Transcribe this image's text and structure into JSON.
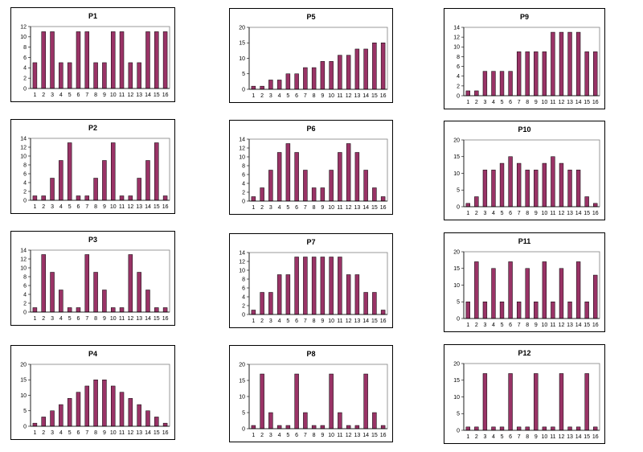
{
  "colors": {
    "bar": "#993366",
    "axis": "#000000",
    "plot_border": "#808080"
  },
  "chart_data": [
    {
      "type": "bar",
      "title": "P1",
      "xlabel": "",
      "ylabel": "",
      "categories": [
        "1",
        "2",
        "3",
        "4",
        "5",
        "6",
        "7",
        "8",
        "9",
        "10",
        "11",
        "12",
        "13",
        "14",
        "15",
        "16"
      ],
      "values": [
        5,
        11,
        11,
        5,
        5,
        11,
        11,
        5,
        5,
        11,
        11,
        5,
        5,
        11,
        11,
        11
      ],
      "ylim": [
        0,
        12
      ],
      "yticks": [
        0,
        2,
        4,
        6,
        8,
        10,
        12
      ]
    },
    {
      "type": "bar",
      "title": "P2",
      "xlabel": "",
      "ylabel": "",
      "categories": [
        "1",
        "2",
        "3",
        "4",
        "5",
        "6",
        "7",
        "8",
        "9",
        "10",
        "11",
        "12",
        "13",
        "14",
        "15",
        "16"
      ],
      "values": [
        1,
        1,
        5,
        9,
        13,
        1,
        1,
        5,
        9,
        13,
        1,
        1,
        5,
        9,
        13,
        1
      ],
      "ylim": [
        0,
        14
      ],
      "yticks": [
        0,
        2,
        4,
        6,
        8,
        10,
        12,
        14
      ]
    },
    {
      "type": "bar",
      "title": "P3",
      "xlabel": "",
      "ylabel": "",
      "categories": [
        "1",
        "2",
        "3",
        "4",
        "5",
        "6",
        "7",
        "8",
        "9",
        "10",
        "11",
        "12",
        "13",
        "14",
        "15",
        "16"
      ],
      "values": [
        1,
        13,
        9,
        5,
        1,
        1,
        13,
        9,
        5,
        1,
        1,
        13,
        9,
        5,
        1,
        1
      ],
      "ylim": [
        0,
        14
      ],
      "yticks": [
        0,
        2,
        4,
        6,
        8,
        10,
        12,
        14
      ]
    },
    {
      "type": "bar",
      "title": "P4",
      "xlabel": "",
      "ylabel": "",
      "categories": [
        "1",
        "2",
        "3",
        "4",
        "5",
        "6",
        "7",
        "8",
        "9",
        "10",
        "11",
        "12",
        "13",
        "14",
        "15",
        "16"
      ],
      "values": [
        1,
        3,
        5,
        7,
        9,
        11,
        13,
        15,
        15,
        13,
        11,
        9,
        7,
        5,
        3,
        1
      ],
      "ylim": [
        0,
        20
      ],
      "yticks": [
        0,
        5,
        10,
        15,
        20
      ]
    },
    {
      "type": "bar",
      "title": "P5",
      "xlabel": "",
      "ylabel": "",
      "categories": [
        "1",
        "2",
        "3",
        "4",
        "5",
        "6",
        "7",
        "8",
        "9",
        "10",
        "11",
        "12",
        "13",
        "14",
        "15",
        "16"
      ],
      "values": [
        1,
        1,
        3,
        3,
        5,
        5,
        7,
        7,
        9,
        9,
        11,
        11,
        13,
        13,
        15,
        15
      ],
      "ylim": [
        0,
        20
      ],
      "yticks": [
        0,
        5,
        10,
        15,
        20
      ]
    },
    {
      "type": "bar",
      "title": "P6",
      "xlabel": "",
      "ylabel": "",
      "categories": [
        "1",
        "2",
        "3",
        "4",
        "5",
        "6",
        "7",
        "8",
        "9",
        "10",
        "11",
        "12",
        "13",
        "14",
        "15",
        "16"
      ],
      "values": [
        1,
        3,
        7,
        11,
        13,
        11,
        7,
        3,
        3,
        7,
        11,
        13,
        11,
        7,
        3,
        1
      ],
      "ylim": [
        0,
        14
      ],
      "yticks": [
        0,
        2,
        4,
        6,
        8,
        10,
        12,
        14
      ]
    },
    {
      "type": "bar",
      "title": "P7",
      "xlabel": "",
      "ylabel": "",
      "categories": [
        "1",
        "2",
        "3",
        "4",
        "5",
        "6",
        "7",
        "8",
        "9",
        "10",
        "11",
        "12",
        "13",
        "14",
        "15",
        "16"
      ],
      "values": [
        1,
        5,
        5,
        9,
        9,
        13,
        13,
        13,
        13,
        13,
        13,
        9,
        9,
        5,
        5,
        1
      ],
      "ylim": [
        0,
        14
      ],
      "yticks": [
        0,
        2,
        4,
        6,
        8,
        10,
        12,
        14
      ]
    },
    {
      "type": "bar",
      "title": "P8",
      "xlabel": "",
      "ylabel": "",
      "categories": [
        "1",
        "2",
        "3",
        "4",
        "5",
        "6",
        "7",
        "8",
        "9",
        "10",
        "11",
        "12",
        "13",
        "14",
        "15",
        "16"
      ],
      "values": [
        1,
        17,
        5,
        1,
        1,
        17,
        5,
        1,
        1,
        17,
        5,
        1,
        1,
        17,
        5,
        1
      ],
      "ylim": [
        0,
        20
      ],
      "yticks": [
        0,
        5,
        10,
        15,
        20
      ]
    },
    {
      "type": "bar",
      "title": "P9",
      "xlabel": "",
      "ylabel": "",
      "categories": [
        "1",
        "2",
        "3",
        "4",
        "5",
        "6",
        "7",
        "8",
        "9",
        "10",
        "11",
        "12",
        "13",
        "14",
        "15",
        "16"
      ],
      "values": [
        1,
        1,
        5,
        5,
        5,
        5,
        9,
        9,
        9,
        9,
        13,
        13,
        13,
        13,
        9,
        9
      ],
      "ylim": [
        0,
        14
      ],
      "yticks": [
        0,
        2,
        4,
        6,
        8,
        10,
        12,
        14
      ]
    },
    {
      "type": "bar",
      "title": "P10",
      "xlabel": "",
      "ylabel": "",
      "categories": [
        "1",
        "2",
        "3",
        "4",
        "5",
        "6",
        "7",
        "8",
        "9",
        "10",
        "11",
        "12",
        "13",
        "14",
        "15",
        "16"
      ],
      "values": [
        1,
        3,
        11,
        11,
        13,
        15,
        13,
        11,
        11,
        13,
        15,
        13,
        11,
        11,
        3,
        1
      ],
      "ylim": [
        0,
        20
      ],
      "yticks": [
        0,
        5,
        10,
        15,
        20
      ]
    },
    {
      "type": "bar",
      "title": "P11",
      "xlabel": "",
      "ylabel": "",
      "categories": [
        "1",
        "2",
        "3",
        "4",
        "5",
        "6",
        "7",
        "8",
        "9",
        "10",
        "11",
        "12",
        "13",
        "14",
        "15",
        "16"
      ],
      "values": [
        5,
        17,
        5,
        15,
        5,
        17,
        5,
        15,
        5,
        17,
        5,
        15,
        5,
        17,
        5,
        13
      ],
      "ylim": [
        0,
        20
      ],
      "yticks": [
        0,
        5,
        10,
        15,
        20
      ]
    },
    {
      "type": "bar",
      "title": "P12",
      "xlabel": "",
      "ylabel": "",
      "categories": [
        "1",
        "2",
        "3",
        "4",
        "5",
        "6",
        "7",
        "8",
        "9",
        "10",
        "11",
        "12",
        "13",
        "14",
        "15",
        "16"
      ],
      "values": [
        1,
        1,
        17,
        1,
        1,
        17,
        1,
        1,
        17,
        1,
        1,
        17,
        1,
        1,
        17,
        1
      ],
      "ylim": [
        0,
        20
      ],
      "yticks": [
        0,
        5,
        10,
        15,
        20
      ]
    }
  ]
}
